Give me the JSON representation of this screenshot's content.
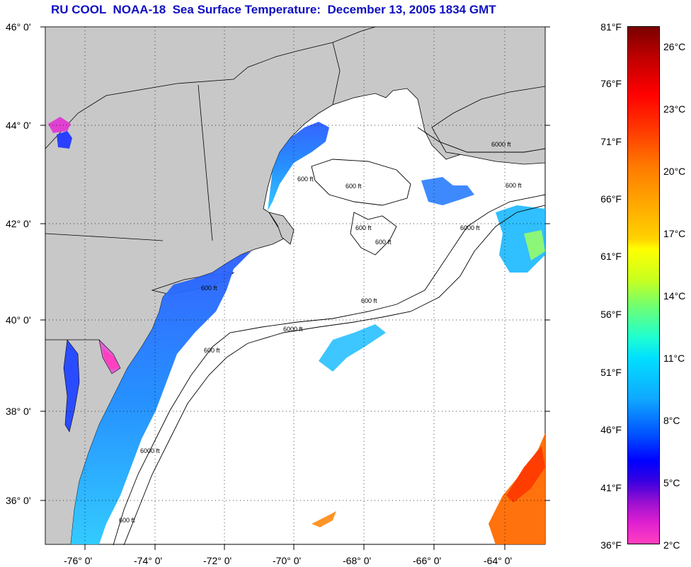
{
  "title": "RU COOL  NOAA-18  Sea Surface Temperature:  December 13, 2005 1834 GMT",
  "lat_labels": [
    "46° 0'",
    "44° 0'",
    "42° 0'",
    "40° 0'",
    "38° 0'",
    "36° 0'"
  ],
  "lon_labels": [
    "-76° 0'",
    "-74° 0'",
    "-72° 0'",
    "-70° 0'",
    "-68° 0'",
    "-66° 0'",
    "-64° 0'"
  ],
  "contour_labels": [
    "600 ft",
    "600 ft",
    "600 ft",
    "600 ft",
    "6000 ft",
    "600 ft",
    "6000 ft",
    "600 ft",
    "6000 ft",
    "600 ft",
    "6000 ft",
    "600 ft",
    "600 ft"
  ],
  "colorbar": {
    "fahrenheit": [
      "81°F",
      "76°F",
      "71°F",
      "66°F",
      "61°F",
      "56°F",
      "51°F",
      "46°F",
      "41°F",
      "36°F"
    ],
    "celsius": [
      "26°C",
      "23°C",
      "20°C",
      "17°C",
      "14°C",
      "11°C",
      "8°C",
      "5°C",
      "2°C"
    ]
  },
  "colors": {
    "title": "#1010c0",
    "land": "#c8c8c8",
    "ocean": "#ffffff"
  }
}
